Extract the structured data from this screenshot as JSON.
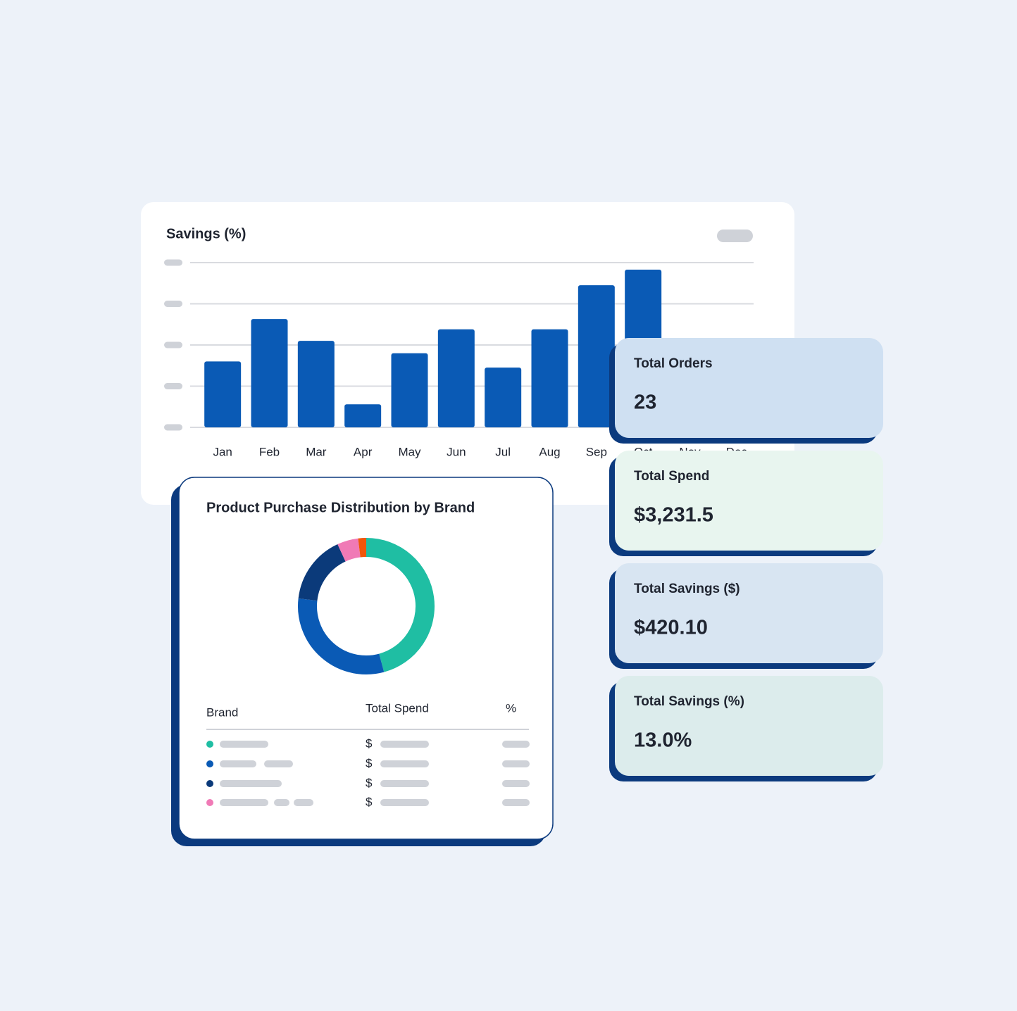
{
  "chart_data": [
    {
      "type": "bar",
      "title": "Savings (%)",
      "categories": [
        "Jan",
        "Feb",
        "Mar",
        "Apr",
        "May",
        "Jun",
        "Jul",
        "Aug",
        "Sep",
        "Oct",
        "Nov",
        "Dec"
      ],
      "values": [
        1.6,
        2.63,
        2.1,
        0.56,
        1.8,
        2.38,
        1.45,
        2.38,
        3.45,
        3.83,
        null,
        null
      ],
      "color": "#0a5ab5",
      "ylim": [
        0,
        4
      ],
      "yticks": [
        0,
        1,
        2,
        3,
        4
      ],
      "grid": true
    },
    {
      "type": "donut",
      "title": "Product Purchase Distribution by Brand",
      "values": [
        45.8,
        31,
        16.3,
        5,
        1.9
      ],
      "colors": [
        "#1fbea3",
        "#0a5ab5",
        "#0b3a7a",
        "#f07ab6",
        "#f0560a"
      ]
    }
  ],
  "table": {
    "headers": [
      "Brand",
      "Total Spend",
      "%"
    ],
    "rows": [
      {
        "currency": "$"
      },
      {
        "currency": "$"
      },
      {
        "currency": "$"
      },
      {
        "currency": "$"
      }
    ]
  },
  "kpis": [
    {
      "label": "Total Orders",
      "value": "23",
      "color": "#cfe0f2"
    },
    {
      "label": "Total Spend",
      "value": "$3,231.5",
      "color": "#e8f5ef"
    },
    {
      "label": "Total Savings ($)",
      "value": "$420.10",
      "color": "#d8e5f2"
    },
    {
      "label": "Total Savings (%)",
      "value": "13.0%",
      "color": "#dcecec"
    }
  ]
}
